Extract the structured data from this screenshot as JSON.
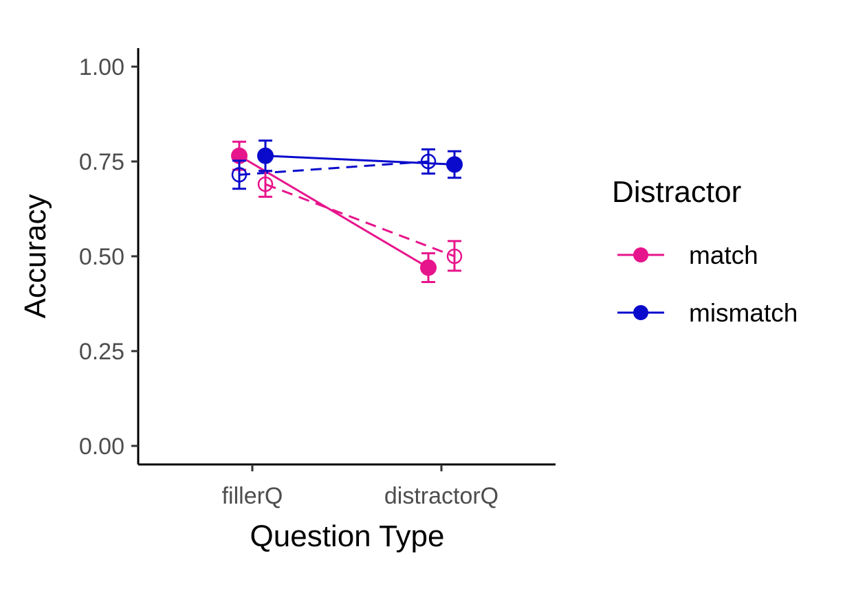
{
  "chart_data": {
    "type": "line",
    "xlabel": "Question Type",
    "ylabel": "Accuracy",
    "categories": [
      "fillerQ",
      "distractorQ"
    ],
    "ylim": [
      0,
      1
    ],
    "yticks": [
      "0.00",
      "0.25",
      "0.50",
      "0.75",
      "1.00"
    ],
    "grid": false,
    "legend": {
      "title": "Distractor",
      "position": "right",
      "entries": [
        "match",
        "mismatch"
      ]
    },
    "series": [
      {
        "name": "match",
        "style": "solid",
        "marker": "filled",
        "color": "#E7158C",
        "values": [
          0.765,
          0.47
        ],
        "ci_low": [
          0.728,
          0.432
        ],
        "ci_high": [
          0.802,
          0.508
        ]
      },
      {
        "name": "match",
        "style": "dashed",
        "marker": "open",
        "color": "#E7158C",
        "values": [
          0.69,
          0.5
        ],
        "ci_low": [
          0.657,
          0.462
        ],
        "ci_high": [
          0.725,
          0.54
        ]
      },
      {
        "name": "mismatch",
        "style": "solid",
        "marker": "filled",
        "color": "#0A0ACC",
        "values": [
          0.765,
          0.742
        ],
        "ci_low": [
          0.725,
          0.707
        ],
        "ci_high": [
          0.805,
          0.777
        ]
      },
      {
        "name": "mismatch",
        "style": "dashed",
        "marker": "open",
        "color": "#0A0ACC",
        "values": [
          0.715,
          0.75
        ],
        "ci_low": [
          0.678,
          0.718
        ],
        "ci_high": [
          0.752,
          0.782
        ]
      }
    ]
  }
}
